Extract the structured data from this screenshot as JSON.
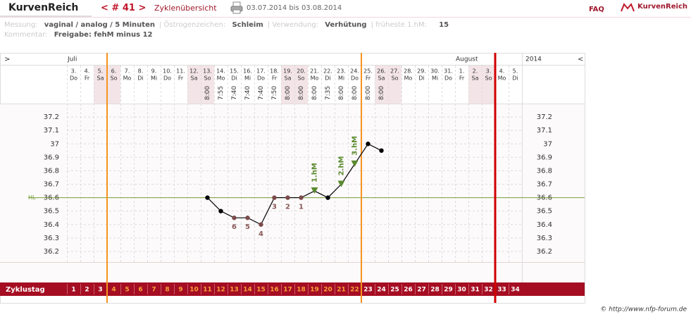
{
  "header": {
    "brand": "KurvenReich",
    "cycle": "< # 41 >",
    "overview": "Zyklenübersicht",
    "range": "03.07.2014 bis 03.08.2014",
    "faq": "FAQ",
    "logo": "KurvenReich"
  },
  "info": {
    "measure_key": "Messung:",
    "measure": "vaginal / analog / 5 Minuten",
    "estrogen_key": "Östrogenzeichen:",
    "estrogen": "Schleim",
    "use_key": "Verwendung:",
    "use": "Verhütung",
    "earliest_key": "früheste 1.hM:",
    "earliest": "15",
    "comment_key": "Kommentar:",
    "comment": "Freigabe: fehM minus 12"
  },
  "footer": "© http://www.nfp-forum.de",
  "chart_data": {
    "type": "line",
    "nav_left": ">",
    "nav_right": "<",
    "months": [
      "Juli",
      "August",
      "2014"
    ],
    "categories": [
      "3.",
      "4.",
      "5.",
      "6.",
      "7.",
      "8.",
      "9.",
      "10.",
      "11.",
      "12.",
      "13.",
      "14.",
      "15.",
      "16.",
      "17.",
      "18.",
      "19.",
      "20.",
      "21.",
      "22.",
      "23.",
      "24.",
      "25.",
      "26.",
      "27.",
      "28.",
      "29.",
      "30.",
      "31.",
      "1.",
      "2.",
      "3.",
      "4.",
      "5."
    ],
    "weekdays": [
      "Do",
      "Fr",
      "Sa",
      "So",
      "Mo",
      "Di",
      "Mi",
      "Do",
      "Fr",
      "Sa",
      "So",
      "Mo",
      "Di",
      "Mi",
      "Do",
      "Fr",
      "Sa",
      "So",
      "Mo",
      "Di",
      "Mi",
      "Do",
      "Fr",
      "Sa",
      "So",
      "Mo",
      "Di",
      "Mi",
      "Do",
      "Fr",
      "Sa",
      "So",
      "Mo",
      "Di"
    ],
    "times": [
      null,
      null,
      null,
      null,
      null,
      null,
      null,
      null,
      null,
      null,
      "8:00",
      "7:55",
      "7:40",
      "7:40",
      "7:40",
      "7:50",
      "8:00",
      "8:00",
      "8:00",
      "7:35",
      "8:00",
      "8:00",
      "8:00",
      "8:00",
      null,
      null,
      null,
      null,
      null,
      null,
      null,
      null,
      null,
      null
    ],
    "values": [
      null,
      null,
      null,
      null,
      null,
      null,
      null,
      null,
      null,
      null,
      36.6,
      36.5,
      36.45,
      36.45,
      36.4,
      36.6,
      36.6,
      36.6,
      36.65,
      36.6,
      36.7,
      36.85,
      37.0,
      36.95,
      null,
      null,
      null,
      null,
      null,
      null,
      null,
      null,
      null,
      null
    ],
    "color": "#000000",
    "point_labels": [
      null,
      null,
      null,
      null,
      null,
      null,
      null,
      null,
      null,
      null,
      null,
      null,
      "6",
      "5",
      "4",
      "3",
      "2",
      "1",
      null,
      null,
      null,
      null,
      null,
      null,
      null,
      null,
      null,
      null,
      null,
      null,
      null,
      null,
      null,
      null
    ],
    "hm_labels": [
      null,
      null,
      null,
      null,
      null,
      null,
      null,
      null,
      null,
      null,
      null,
      null,
      null,
      null,
      null,
      null,
      null,
      null,
      "1.hM",
      null,
      "2.hM",
      "3.hM",
      null,
      null,
      null,
      null,
      null,
      null,
      null,
      null,
      null,
      null,
      null,
      null
    ],
    "hl_label": "HL",
    "hl_value": 36.6,
    "ylim": [
      36.1,
      37.3
    ],
    "yticks": [
      37.2,
      37.1,
      37,
      36.9,
      36.8,
      36.7,
      36.6,
      36.5,
      36.4,
      36.3,
      36.2
    ],
    "grid": true,
    "cycle_day_label": "Zyklustag",
    "cycle_days": [
      1,
      2,
      3,
      4,
      5,
      6,
      7,
      8,
      9,
      10,
      11,
      12,
      13,
      14,
      15,
      16,
      17,
      18,
      19,
      20,
      21,
      22,
      23,
      24,
      25,
      26,
      27,
      28,
      29,
      30,
      31,
      32,
      33,
      34
    ]
  }
}
